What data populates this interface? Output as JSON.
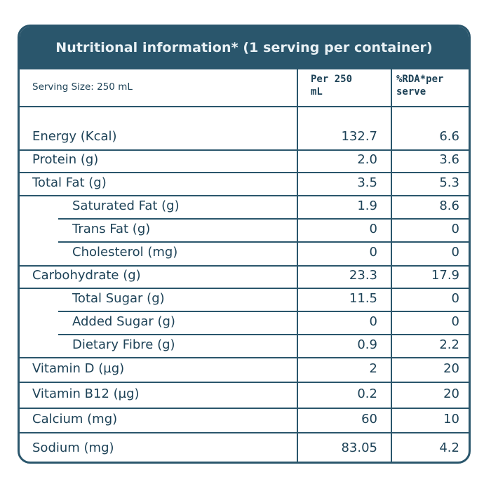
{
  "title": "Nutritional information* (1 serving per container)",
  "header": {
    "serving_size": "Serving Size: 250 mL",
    "col_per_line1": "Per 250",
    "col_per_line2": "mL",
    "col_rda_line1": "%RDA*per",
    "col_rda_line2": "serve"
  },
  "colors": {
    "primary": "#2a566c",
    "text": "#1d4257",
    "title_text": "#e9f1f5"
  },
  "rows": [
    {
      "label": "Energy (Kcal)",
      "per": "132.7",
      "rda": "6.6",
      "indent": false
    },
    {
      "label": "Protein (g)",
      "per": "2.0",
      "rda": "3.6",
      "indent": false
    },
    {
      "label": "Total Fat (g)",
      "per": "3.5",
      "rda": "5.3",
      "indent": false
    },
    {
      "label": "Saturated Fat (g)",
      "per": "1.9",
      "rda": "8.6",
      "indent": true
    },
    {
      "label": "Trans Fat (g)",
      "per": "0",
      "rda": "0",
      "indent": true
    },
    {
      "label": "Cholesterol (mg)",
      "per": "0",
      "rda": "0",
      "indent": true
    },
    {
      "label": "Carbohydrate (g)",
      "per": "23.3",
      "rda": "17.9",
      "indent": false
    },
    {
      "label": "Total Sugar (g)",
      "per": "11.5",
      "rda": "0",
      "indent": true
    },
    {
      "label": "Added Sugar (g)",
      "per": "0",
      "rda": "0",
      "indent": true
    },
    {
      "label": "Dietary Fibre (g)",
      "per": "0.9",
      "rda": "2.2",
      "indent": true
    },
    {
      "label": "Vitamin D (µg)",
      "per": "2",
      "rda": "20",
      "indent": false
    },
    {
      "label": "Vitamin B12  (µg)",
      "per": "0.2",
      "rda": "20",
      "indent": false
    },
    {
      "label": "Calcium (mg)",
      "per": "60",
      "rda": "10",
      "indent": false
    },
    {
      "label": "Sodium (mg)",
      "per": "83.05",
      "rda": "4.2",
      "indent": false
    }
  ]
}
